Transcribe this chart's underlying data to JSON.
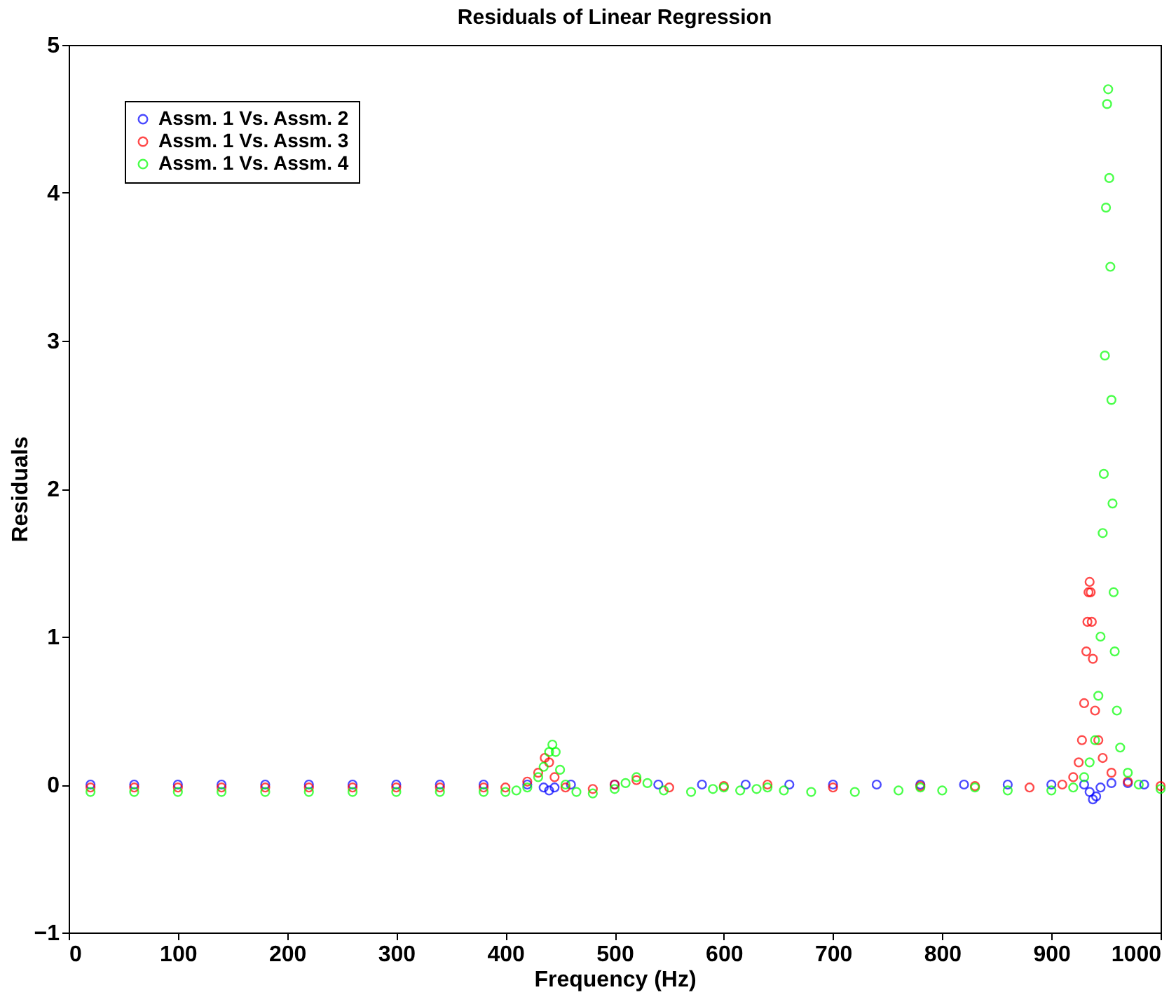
{
  "chart_data": {
    "type": "scatter",
    "title": "Residuals of Linear Regression",
    "xlabel": "Frequency (Hz)",
    "ylabel": "Residuals",
    "xlim": [
      0,
      1000
    ],
    "xticks": [
      0,
      100,
      200,
      300,
      400,
      500,
      600,
      700,
      800,
      900,
      1000
    ],
    "ylim": [
      -1,
      5
    ],
    "yticks": [
      -1,
      0,
      1,
      2,
      3,
      4,
      5
    ],
    "grid": false,
    "legend": "top left",
    "marker": "circle",
    "series": [
      {
        "name": "Assm. 1 Vs. Assm. 2",
        "color": "#0000ff",
        "x": [
          20,
          60,
          100,
          140,
          180,
          220,
          260,
          300,
          340,
          380,
          420,
          435,
          440,
          445,
          460,
          500,
          540,
          580,
          620,
          660,
          700,
          740,
          780,
          820,
          860,
          900,
          930,
          935,
          938,
          941,
          945,
          955,
          970,
          985
        ],
        "values": [
          0.0,
          0.0,
          0.0,
          0.0,
          0.0,
          0.0,
          0.0,
          0.0,
          0.0,
          0.0,
          0.0,
          -0.02,
          -0.04,
          -0.02,
          0.0,
          0.0,
          0.0,
          0.0,
          0.0,
          0.0,
          0.0,
          0.0,
          0.0,
          0.0,
          0.0,
          0.0,
          0.0,
          -0.05,
          -0.1,
          -0.08,
          -0.02,
          0.01,
          0.01,
          0.0
        ]
      },
      {
        "name": "Assm. 1 Vs. Assm. 3",
        "color": "#ff0000",
        "x": [
          20,
          60,
          100,
          140,
          180,
          220,
          260,
          300,
          340,
          380,
          400,
          420,
          430,
          436,
          440,
          445,
          455,
          480,
          500,
          520,
          550,
          600,
          640,
          700,
          780,
          830,
          880,
          910,
          920,
          925,
          928,
          930,
          932,
          933,
          934,
          935,
          936,
          937,
          938,
          940,
          943,
          947,
          955,
          970,
          1000
        ],
        "values": [
          -0.02,
          -0.02,
          -0.02,
          -0.02,
          -0.02,
          -0.02,
          -0.02,
          -0.02,
          -0.02,
          -0.02,
          -0.02,
          0.02,
          0.08,
          0.18,
          0.15,
          0.05,
          -0.02,
          -0.03,
          0.0,
          0.03,
          -0.02,
          -0.01,
          0.0,
          -0.02,
          -0.01,
          -0.01,
          -0.02,
          0.0,
          0.05,
          0.15,
          0.3,
          0.55,
          0.9,
          1.1,
          1.3,
          1.37,
          1.3,
          1.1,
          0.85,
          0.5,
          0.3,
          0.18,
          0.08,
          0.02,
          -0.01
        ]
      },
      {
        "name": "Assm. 1 Vs. Assm. 4",
        "color": "#00ff00",
        "x": [
          20,
          60,
          100,
          140,
          180,
          220,
          260,
          300,
          340,
          380,
          400,
          410,
          420,
          430,
          435,
          440,
          443,
          446,
          450,
          455,
          465,
          480,
          500,
          510,
          520,
          530,
          545,
          570,
          590,
          600,
          615,
          630,
          640,
          655,
          680,
          720,
          760,
          780,
          800,
          830,
          860,
          900,
          920,
          930,
          935,
          940,
          943,
          945,
          947,
          948,
          949,
          950,
          951,
          952,
          953,
          954,
          955,
          956,
          957,
          958,
          960,
          963,
          970,
          980,
          1000
        ],
        "values": [
          -0.05,
          -0.05,
          -0.05,
          -0.05,
          -0.05,
          -0.05,
          -0.05,
          -0.05,
          -0.05,
          -0.05,
          -0.05,
          -0.04,
          -0.02,
          0.05,
          0.12,
          0.22,
          0.27,
          0.22,
          0.1,
          0.0,
          -0.05,
          -0.06,
          -0.03,
          0.01,
          0.05,
          0.01,
          -0.04,
          -0.05,
          -0.03,
          -0.02,
          -0.04,
          -0.03,
          -0.02,
          -0.04,
          -0.05,
          -0.05,
          -0.04,
          -0.02,
          -0.04,
          -0.02,
          -0.04,
          -0.04,
          -0.02,
          0.05,
          0.15,
          0.3,
          0.6,
          1.0,
          1.7,
          2.1,
          2.9,
          3.9,
          4.6,
          4.7,
          4.1,
          3.5,
          2.6,
          1.9,
          1.3,
          0.9,
          0.5,
          0.25,
          0.08,
          0.0,
          -0.03
        ]
      }
    ]
  }
}
